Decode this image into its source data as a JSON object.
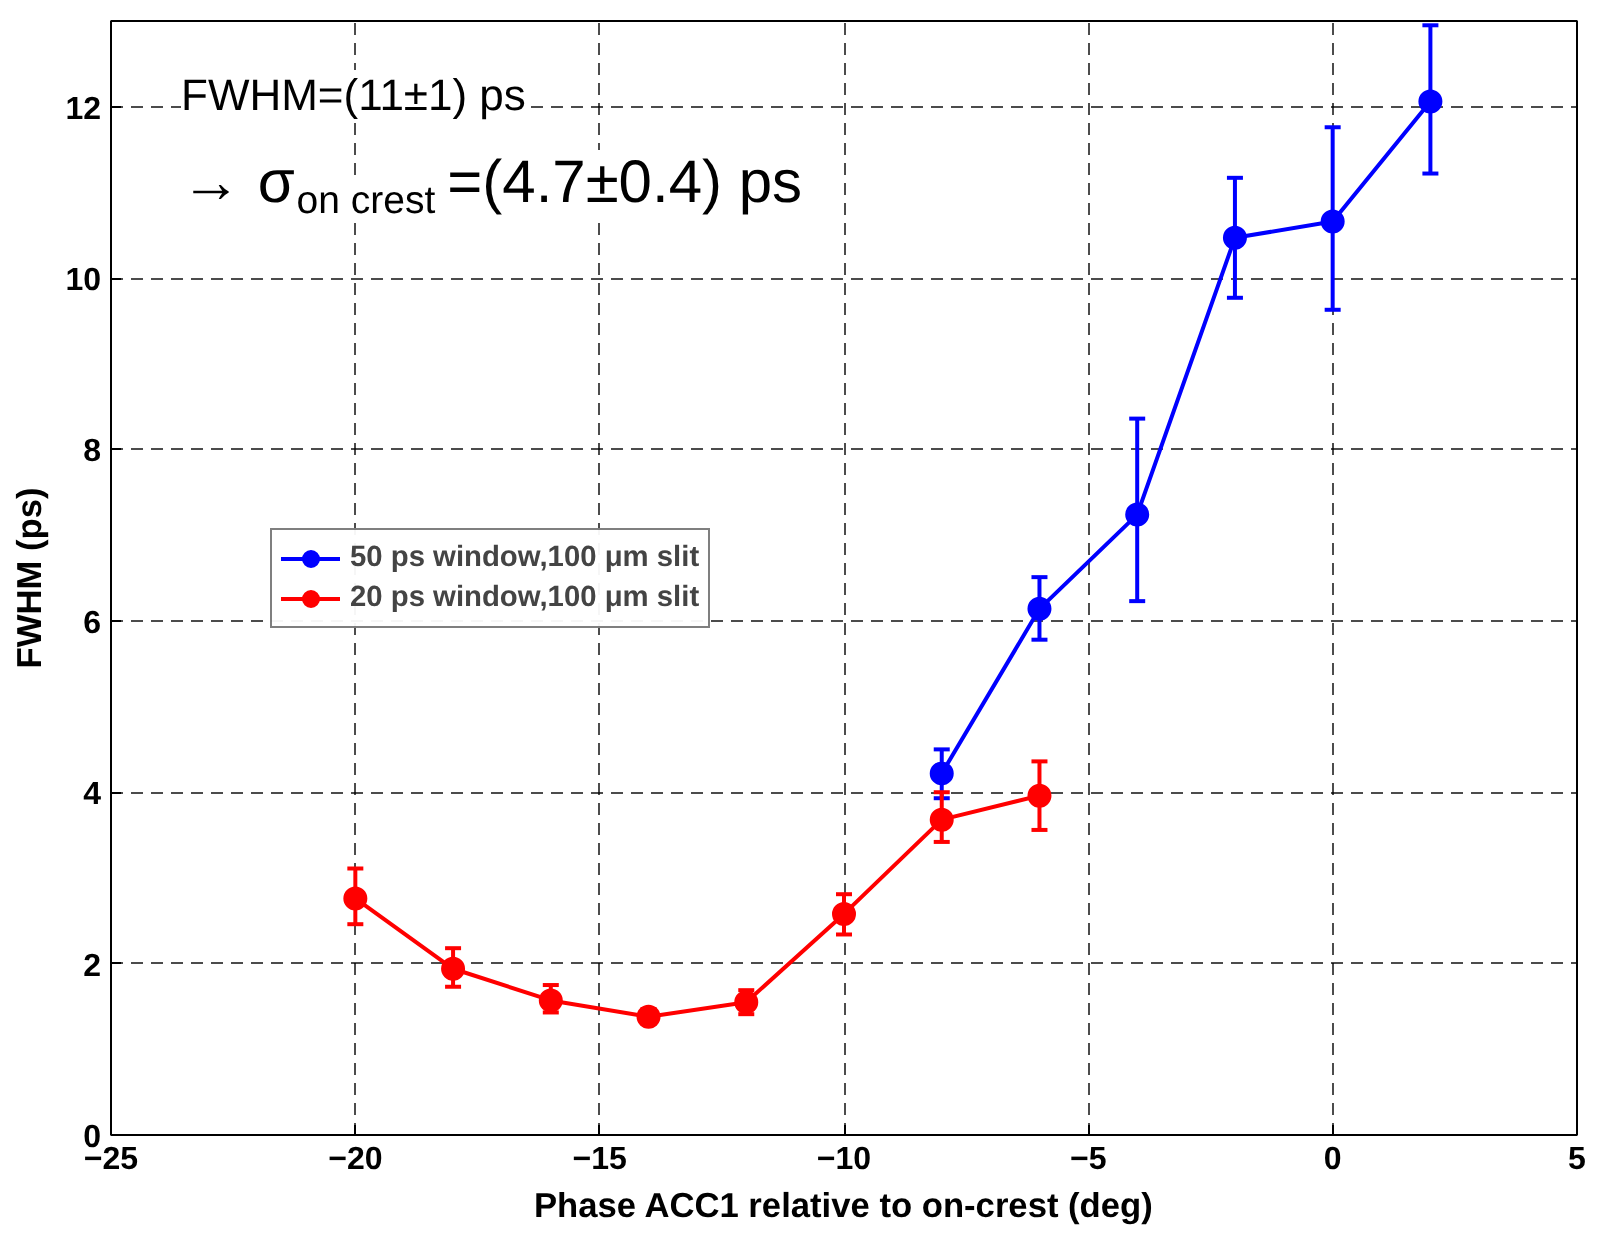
{
  "chart_data": {
    "type": "line",
    "xlabel": "Phase ACC1 relative to on-crest (deg)",
    "ylabel": "FWHM (ps)",
    "annotations": [
      "FWHM=(11±1) ps",
      "→ σ$_{on crest}$=(4.7±0.4) ps"
    ],
    "series": [
      {
        "name": "50 ps window,100 μm slit",
        "color": "#0000ff",
        "x": [
          -8,
          -6,
          -4,
          -2,
          0,
          2
        ],
        "values": [
          4.22,
          6.14,
          7.24,
          10.47,
          10.66,
          12.06
        ],
        "errors": [
          [
            3.93,
            4.5
          ],
          [
            5.78,
            6.51
          ],
          [
            6.23,
            8.36
          ],
          [
            9.77,
            11.17
          ],
          [
            9.63,
            11.76
          ],
          [
            11.22,
            12.95
          ]
        ]
      },
      {
        "name": "20 ps window,100 μm slit",
        "color": "#ff0000",
        "x": [
          -20,
          -18,
          -16,
          -14,
          -12,
          -10,
          -8,
          -6
        ],
        "values": [
          2.76,
          1.94,
          1.57,
          1.38,
          1.55,
          2.58,
          3.68,
          3.96
        ],
        "errors": [
          [
            2.46,
            3.11
          ],
          [
            1.73,
            2.18
          ],
          [
            1.43,
            1.75
          ],
          [
            1.3,
            1.47
          ],
          [
            1.41,
            1.69
          ],
          [
            2.34,
            2.81
          ],
          [
            3.42,
            4.0
          ],
          [
            3.56,
            4.36
          ]
        ]
      }
    ],
    "xlim": [
      -25,
      5
    ],
    "ylim": [
      0,
      13
    ],
    "xticks": [
      -25,
      -20,
      -15,
      -10,
      -5,
      0,
      5
    ],
    "yticks": [
      0,
      2,
      4,
      6,
      8,
      10,
      12
    ],
    "grid": true,
    "legend": "center left",
    "marker": "circle",
    "line_style": "solid"
  }
}
